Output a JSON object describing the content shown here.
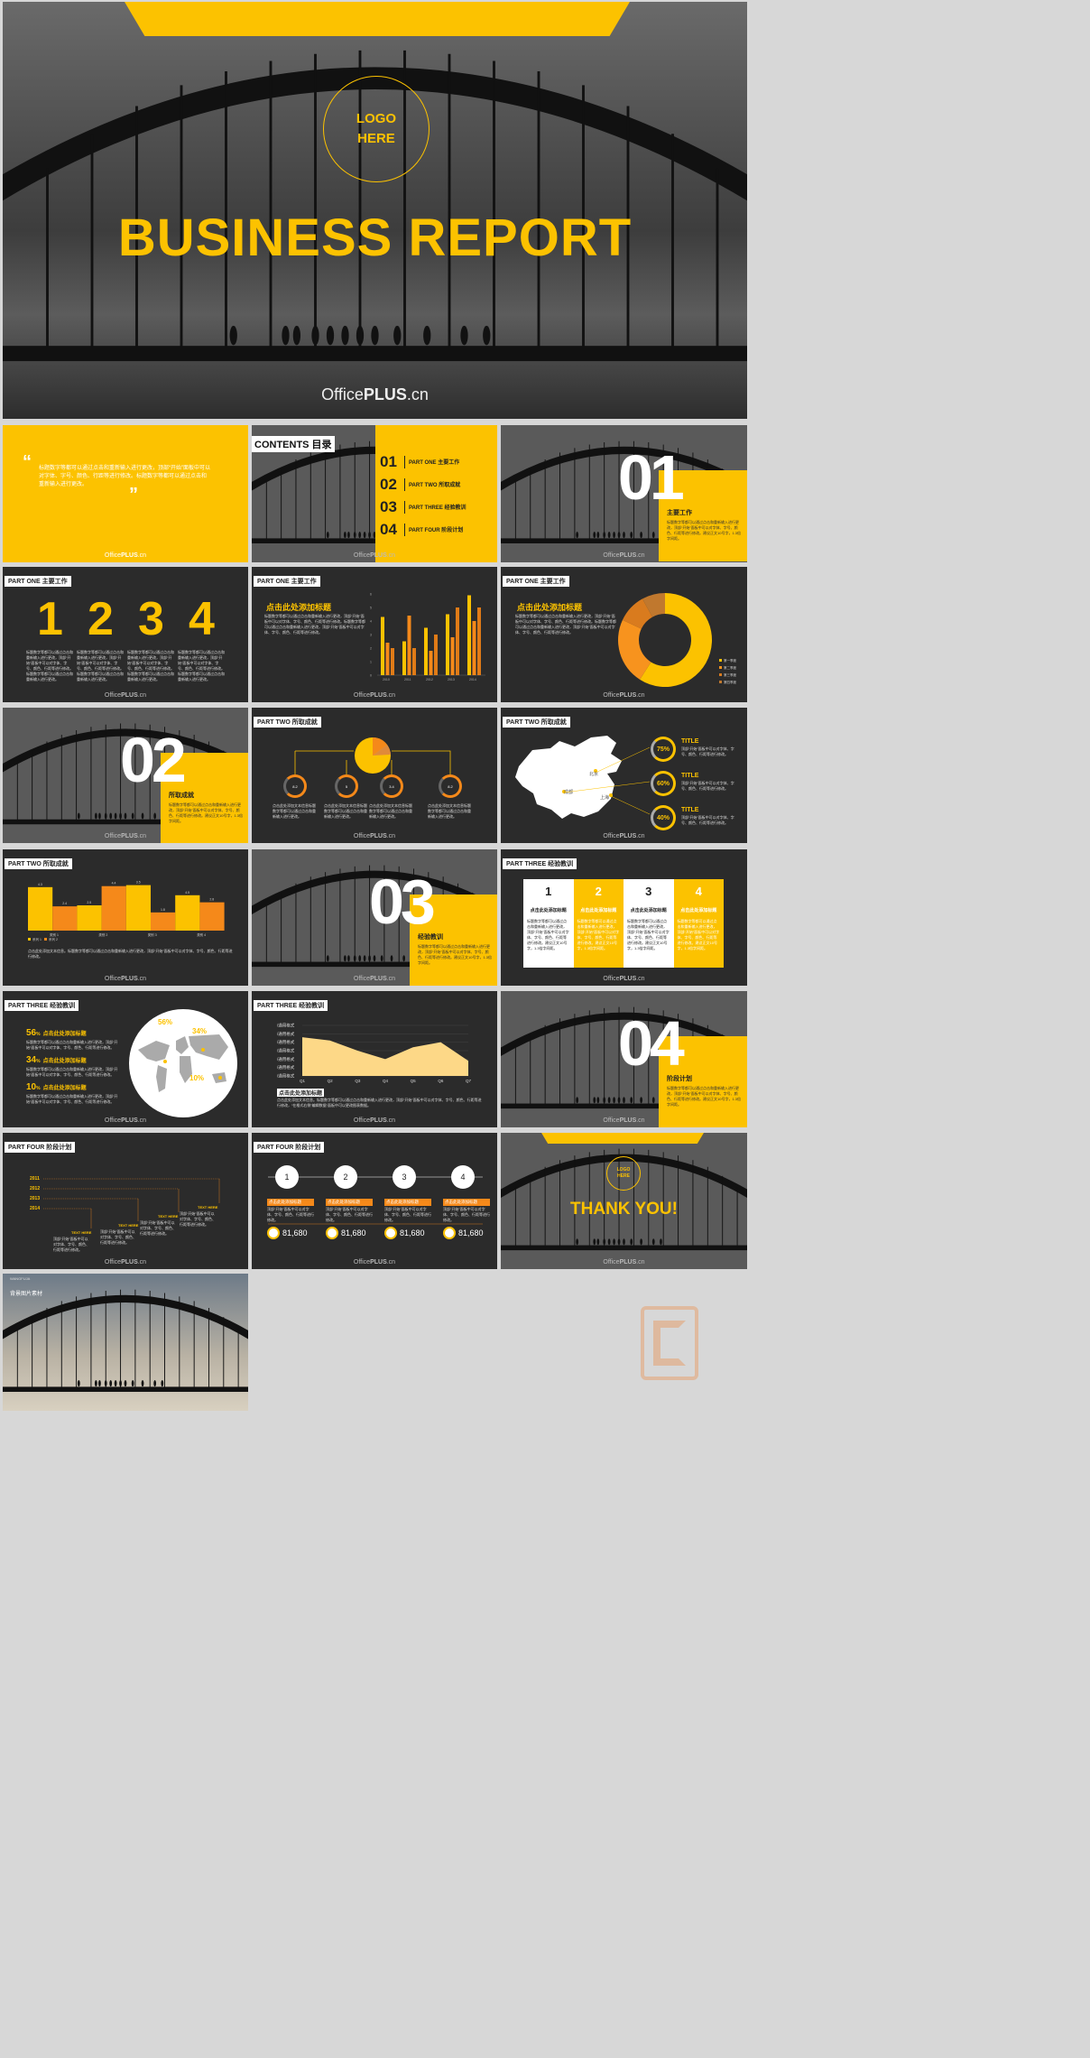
{
  "cover": {
    "logo_line1": "LOGO",
    "logo_line2": "HERE",
    "title": "BUSINESS REPORT",
    "brand_a": "Office",
    "brand_b": "PLUS",
    "brand_c": ".cn"
  },
  "watermark": {
    "a": "Office",
    "b": "PLUS",
    "c": ".cn"
  },
  "quote": {
    "open": "“",
    "close": "”",
    "text": "标题数字等都可以通过点击和重新输入进行更改，顶部“开始”面板中可以对字体、字号、颜色、行距等进行修改。标题数字等都可以通过点击和重新输入进行更改。"
  },
  "contents": {
    "header": "CONTENTS 目录",
    "items": [
      {
        "num": "01",
        "label": "PART ONE 主要工作"
      },
      {
        "num": "02",
        "label": "PART TWO 所取成就"
      },
      {
        "num": "03",
        "label": "PART THREE 经验教训"
      },
      {
        "num": "04",
        "label": "PART FOUR 阶段计划"
      }
    ]
  },
  "sections": [
    {
      "num": "01",
      "title": "主要工作",
      "text": "标题数字等都可以通过点击和重新输入进行更改，顶部“开始”面板中可以对字体、字号、颜色、行距等进行修改。建议正文10号字，1.3倍字间距。"
    },
    {
      "num": "02",
      "title": "所取成就",
      "text": "标题数字等都可以通过点击和重新输入进行更改，顶部“开始”面板中可以对字体、字号、颜色、行距等进行修改。建议正文10号字，1.3倍字间距。"
    },
    {
      "num": "03",
      "title": "经验教训",
      "text": "标题数字等都可以通过点击和重新输入进行更改，顶部“开始”面板中可以对字体、字号、颜色、行距等进行修改。建议正文10号字，1.3倍字间距。"
    },
    {
      "num": "04",
      "title": "阶段计划",
      "text": "标题数字等都可以通过点击和重新输入进行更改，顶部“开始”面板中可以对字体、字号、颜色、行距等进行修改。建议正文10号字，1.3倍字间距。"
    }
  ],
  "headers": {
    "part1": "PART ONE 主要工作",
    "part2": "PART TWO 所取成就",
    "part3": "PART THREE 经验教训",
    "part4": "PART FOUR 阶段计划"
  },
  "s1234": {
    "numbers": [
      "1",
      "2",
      "3",
      "4"
    ],
    "text": "标题数字等都可以通过点击和重新输入进行更改，顶部“开始”面板中可以对字体、字号、颜色、行距等进行修改。标题数字等都可以通过点击和重新输入进行更改。"
  },
  "clickTitle": "点击此处添加标题",
  "bodyText": "标题数字等都可以通过点击和重新输入进行更改，顶部“开始”面板中可以对字体、字号、颜色、行距等进行修改。标题数字等都可以通过点击和重新输入进行更改，顶部“开始”面板中可以对字体、字号、颜色、行距等进行修改。",
  "barChart": {
    "chart_data": {
      "type": "bar",
      "categories": [
        "2010",
        "2011",
        "2012",
        "2013",
        "2014"
      ],
      "ylim": [
        0,
        6
      ],
      "yticks": [
        "0",
        "1",
        "2",
        "3",
        "4",
        "5",
        "6"
      ],
      "series": [
        {
          "values": [
            4.3,
            2.5,
            3.5,
            4.5,
            5.9
          ]
        },
        {
          "values": [
            2.4,
            4.4,
            1.8,
            2.8,
            4.0
          ]
        },
        {
          "values": [
            2.0,
            2.0,
            3.0,
            5.0,
            5.0
          ]
        }
      ],
      "colors": [
        "#fcc200",
        "#f5891a",
        "#e07b17"
      ]
    }
  },
  "donut": {
    "chart_data": {
      "type": "pie",
      "values": [
        59,
        23,
        10,
        8
      ],
      "legend": [
        "第一季度",
        "第二季度",
        "第三季度",
        "第四季度"
      ],
      "colors": [
        "#fcc200",
        "#f7931e",
        "#d97b1e",
        "#c0782e"
      ]
    }
  },
  "flow": {
    "items": [
      {
        "v": "8.2",
        "text": "点击此处添加文本信息标题数字等都可以通过点击和重新输入进行更改。"
      },
      {
        "v": "5",
        "text": "点击此处添加文本信息标题数字等都可以通过点击和重新输入进行更改。"
      },
      {
        "v": "3.4",
        "text": "点击此处添加文本信息标题数字等都可以通过点击和重新输入进行更改。"
      },
      {
        "v": "8.2",
        "text": "点击此处添加文本信息标题数字等都可以通过点击和重新输入进行更改。"
      }
    ]
  },
  "chinaMap": {
    "cities": [
      "北京",
      "成都",
      "上海"
    ],
    "items": [
      {
        "pct": "75%",
        "title": "TITLE",
        "text": "顶部“开始”面板中可以对字体、字号、颜色、行距等进行修改。"
      },
      {
        "pct": "60%",
        "title": "TITLE",
        "text": "顶部“开始”面板中可以对字体、字号、颜色、行距等进行修改。"
      },
      {
        "pct": "40%",
        "title": "TITLE",
        "text": "顶部“开始”面板中可以对字体、字号、颜色、行距等进行修改。"
      }
    ]
  },
  "stepBars": {
    "chart_data": {
      "type": "bar",
      "categories": [
        "类别 1",
        "类别 2",
        "类别 3",
        "类别 4"
      ],
      "series": [
        {
          "name": "系列 1",
          "values": [
            4.3,
            2.5,
            4.5,
            3.5
          ]
        },
        {
          "name": "系列 2",
          "values": [
            2.4,
            4.4,
            1.8,
            2.8
          ]
        }
      ],
      "labels": [
        "4.3",
        "2.4",
        "2.5",
        "4.4",
        "3.5",
        "1.8",
        "4.5",
        "2.8"
      ],
      "ylim": [
        0,
        5
      ]
    },
    "text": "点击此处添加文本信息。标题数字等都可以通过点击和重新输入进行更改，顶部“开始”面板中可以对字体、字号、颜色、行距等进行修改。"
  },
  "cards": [
    {
      "num": "1",
      "title": "点击此处添加标题",
      "text": "标题数字等都可以通过点击和重新输入进行更改，顶部“开始”面板中可以对字体、字号、颜色、行距等进行修改。建议正文10号字，1.3倍字间距。"
    },
    {
      "num": "2",
      "title": "点击此处添加标题",
      "text": "标题数字等都可以通过点击和重新输入进行更改，顶部“开始”面板中可以对字体、字号、颜色、行距等进行修改。建议正文10号字，1.3倍字间距。"
    },
    {
      "num": "3",
      "title": "点击此处添加标题",
      "text": "标题数字等都可以通过点击和重新输入进行更改，顶部“开始”面板中可以对字体、字号、颜色、行距等进行修改。建议正文10号字，1.3倍字间距。"
    },
    {
      "num": "4",
      "title": "点击此处添加标题",
      "text": "标题数字等都可以通过点击和重新输入进行更改，顶部“开始”面板中可以对字体、字号、颜色、行距等进行修改。建议正文10号字，1.3倍字间距。"
    }
  ],
  "world": {
    "items": [
      {
        "pct": "56",
        "unit": "%",
        "title": "点击此处添加标题",
        "text": "标题数字等都可以通过点击和重新输入进行更改，顶部“开始”面板中可以对字体、字号、颜色、行距等进行修改。"
      },
      {
        "pct": "34",
        "unit": "%",
        "title": "点击此处添加标题",
        "text": "标题数字等都可以通过点击和重新输入进行更改，顶部“开始”面板中可以对字体、字号、颜色、行距等进行修改。"
      },
      {
        "pct": "10",
        "unit": "%",
        "title": "点击此处添加标题",
        "text": "标题数字等都可以通过点击和重新输入进行更改，顶部“开始”面板中可以对字体、字号、颜色、行距等进行修改。"
      }
    ],
    "mapLabels": [
      "56%",
      "34%",
      "10%"
    ]
  },
  "area": {
    "chart_data": {
      "type": "area",
      "categories": [
        "Q1",
        "Q2",
        "Q3",
        "Q4",
        "Q5",
        "Q6",
        "Q7"
      ],
      "values": [
        4.6,
        4.2,
        3.0,
        2.0,
        3.4,
        4.0,
        1.8
      ],
      "ylabels": [
        "/通用格式",
        "/通用格式",
        "/通用格式",
        "/通用格式",
        "/通用格式",
        "/通用格式",
        "/通用格式"
      ]
    },
    "title": "点击此处添加标题",
    "text": "点击此处添加文本信息。标题数字等都可以通过点击和重新输入进行更改，顶部“开始”面板中可以对字体、字号、颜色、行距等进行修改，“在格式右侧”编辑数据“面板中可以更改图表数据。"
  },
  "timeline": {
    "years": [
      "2011",
      "2012",
      "2013",
      "2014"
    ],
    "items": [
      {
        "title": "TEXT HERE",
        "text": "顶部“开始”面板中可以对字体、字号、颜色、行距等进行修改。"
      },
      {
        "title": "TEXT HERE",
        "text": "顶部“开始”面板中可以对字体、字号、颜色、行距等进行修改。"
      },
      {
        "title": "TEXT HERE",
        "text": "顶部“开始”面板中可以对字体、字号、颜色、行距等进行修改。"
      },
      {
        "title": "TEXT HERE",
        "text": "顶部“开始”面板中可以对字体、字号、颜色、行距等进行修改。"
      }
    ]
  },
  "steps": {
    "items": [
      {
        "n": "1",
        "title": "点击此处添加标题",
        "text": "顶部“开始”面板中可以对字体、字号、颜色、行距等进行修改。",
        "value": "81,680"
      },
      {
        "n": "2",
        "title": "点击此处添加标题",
        "text": "顶部“开始”面板中可以对字体、字号、颜色、行距等进行修改。",
        "value": "81,680"
      },
      {
        "n": "3",
        "title": "点击此处添加标题",
        "text": "顶部“开始”面板中可以对字体、字号、颜色、行距等进行修改。",
        "value": "81,680"
      },
      {
        "n": "4",
        "title": "点击此处添加标题",
        "text": "顶部“开始”面板中可以对字体、字号、颜色、行距等进行修改。",
        "value": "81,680"
      }
    ]
  },
  "thanks": {
    "logo1": "LOGO",
    "logo2": "HERE",
    "title": "THANK YOU!"
  },
  "bgMaterial": {
    "small": "WANGFUJA",
    "label": "背景图片素材"
  }
}
